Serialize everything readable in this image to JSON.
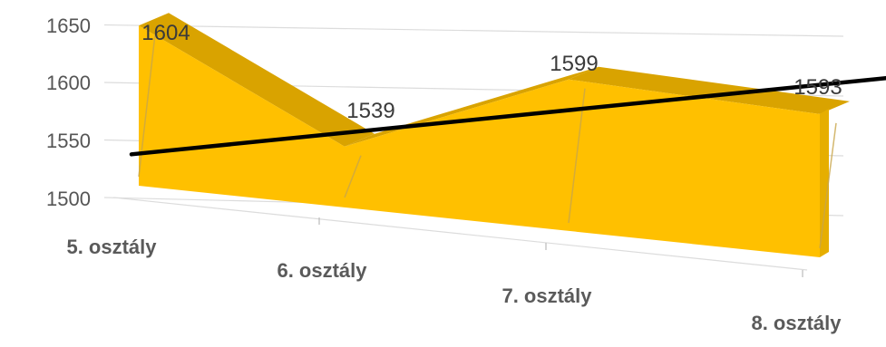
{
  "chart_data": {
    "type": "area",
    "categories": [
      "5. osztály",
      "6. osztály",
      "7. osztály",
      "8. osztály"
    ],
    "series": [
      {
        "values": [
          1604,
          1539,
          1599,
          1593
        ]
      }
    ],
    "trendline": {
      "start": 1549,
      "end": 1590
    },
    "data_labels": [
      "1604",
      "1539",
      "1599",
      "1593"
    ],
    "y_ticks": [
      "1500",
      "1550",
      "1600",
      "1650"
    ],
    "ylim": [
      1500,
      1650
    ],
    "grid": true,
    "legend": "none",
    "colors": {
      "area_front": "#FFC000",
      "area_top": "#D9A300",
      "area_side": "#E6AE00",
      "trend": "#000000",
      "grid": "#dcdcdc"
    }
  }
}
